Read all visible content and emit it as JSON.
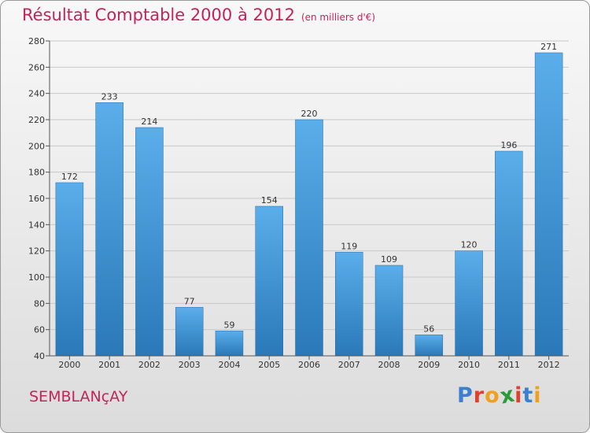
{
  "header": {
    "title": "Résultat Comptable 2000 à 2012",
    "subtitle": "(en milliers d'€)"
  },
  "footer": {
    "city": "SEMBLANçAY",
    "logo_letters": [
      "P",
      "r",
      "o",
      "x",
      "i",
      "t",
      "i"
    ]
  },
  "colors": {
    "title": "#c2245a",
    "bar_top": "#5aaeea",
    "bar_bottom": "#2a78b8",
    "logo": [
      "#3a7fd0",
      "#e0402e",
      "#f0a020",
      "#2a9a3a",
      "#e0402e",
      "#3a7fd0",
      "#f0a020"
    ]
  },
  "chart_data": {
    "type": "bar",
    "title": "Résultat Comptable 2000 à 2012",
    "subtitle": "(en milliers d'€)",
    "categories": [
      "2000",
      "2001",
      "2002",
      "2003",
      "2004",
      "2005",
      "2006",
      "2007",
      "2008",
      "2009",
      "2010",
      "2011",
      "2012"
    ],
    "values": [
      172,
      233,
      214,
      77,
      59,
      154,
      220,
      119,
      109,
      56,
      120,
      196,
      271
    ],
    "ylim": [
      40,
      280
    ],
    "yticks": [
      40,
      60,
      80,
      100,
      120,
      140,
      160,
      180,
      200,
      220,
      240,
      260,
      280
    ],
    "xlabel": "",
    "ylabel": "",
    "grid": true
  }
}
